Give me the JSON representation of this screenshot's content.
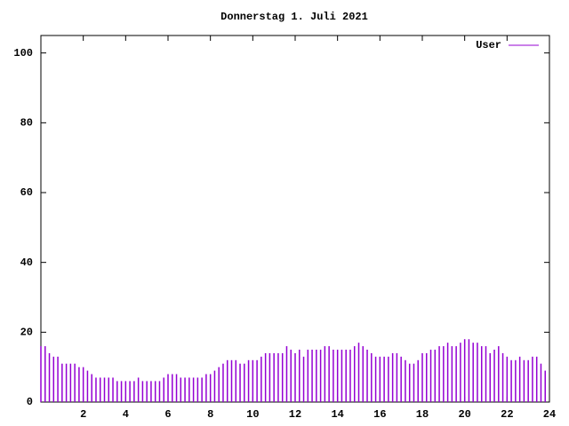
{
  "chart_data": {
    "type": "impulse",
    "title": "Donnerstag 1. Juli 2021",
    "series": [
      {
        "name": "User",
        "color": "#9400d3",
        "x": [
          0,
          0.2,
          0.4,
          0.6,
          0.8,
          1,
          1.2,
          1.4,
          1.6,
          1.8,
          2,
          2.2,
          2.4,
          2.6,
          2.8,
          3,
          3.2,
          3.4,
          3.6,
          3.8,
          4,
          4.2,
          4.4,
          4.6,
          4.8,
          5,
          5.2,
          5.4,
          5.6,
          5.8,
          6,
          6.2,
          6.4,
          6.6,
          6.8,
          7,
          7.2,
          7.4,
          7.6,
          7.8,
          8,
          8.2,
          8.4,
          8.6,
          8.8,
          9,
          9.2,
          9.4,
          9.6,
          9.8,
          10,
          10.2,
          10.4,
          10.6,
          10.8,
          11,
          11.2,
          11.4,
          11.6,
          11.8,
          12,
          12.2,
          12.4,
          12.6,
          12.8,
          13,
          13.2,
          13.4,
          13.6,
          13.8,
          14,
          14.2,
          14.4,
          14.6,
          14.8,
          15,
          15.2,
          15.4,
          15.6,
          15.8,
          16,
          16.2,
          16.4,
          16.6,
          16.8,
          17,
          17.2,
          17.4,
          17.6,
          17.8,
          18,
          18.2,
          18.4,
          18.6,
          18.8,
          19,
          19.2,
          19.4,
          19.6,
          19.8,
          20,
          20.2,
          20.4,
          20.6,
          20.8,
          21,
          21.2,
          21.4,
          21.6,
          21.8,
          22,
          22.2,
          22.4,
          22.6,
          22.8,
          23,
          23.2,
          23.4,
          23.6,
          23.8
        ],
        "values": [
          16,
          16,
          14,
          13,
          13,
          11,
          11,
          11,
          11,
          10,
          10,
          9,
          8,
          7,
          7,
          7,
          7,
          7,
          6,
          6,
          6,
          6,
          6,
          7,
          6,
          6,
          6,
          6,
          6,
          7,
          8,
          8,
          8,
          7,
          7,
          7,
          7,
          7,
          7,
          8,
          8,
          9,
          10,
          11,
          12,
          12,
          12,
          11,
          11,
          12,
          12,
          12,
          13,
          14,
          14,
          14,
          14,
          14,
          16,
          15,
          14,
          15,
          13,
          15,
          15,
          15,
          15,
          16,
          16,
          15,
          15,
          15,
          15,
          15,
          16,
          17,
          16,
          15,
          14,
          13,
          13,
          13,
          13,
          14,
          14,
          13,
          12,
          11,
          11,
          12,
          14,
          14,
          15,
          15,
          16,
          16,
          17,
          16,
          16,
          17,
          18,
          18,
          17,
          17,
          16,
          16,
          14,
          15,
          16,
          14,
          13,
          12,
          12,
          13,
          12,
          12,
          13,
          13,
          11,
          9
        ]
      }
    ],
    "xlim": [
      0,
      24
    ],
    "xticks": [
      2,
      4,
      6,
      8,
      10,
      12,
      14,
      16,
      18,
      20,
      22,
      24
    ],
    "ylim": [
      0,
      105
    ],
    "yticks": [
      0,
      20,
      40,
      60,
      80,
      100
    ],
    "legend": "top-right"
  }
}
